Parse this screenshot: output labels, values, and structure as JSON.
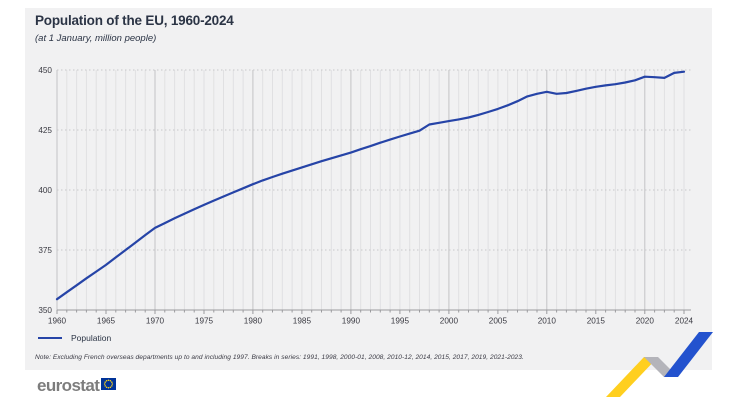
{
  "page": {
    "background": "#ffffff",
    "card_background": "#f1f1f2"
  },
  "header": {
    "title": "Population of the EU, 1960-2024",
    "subtitle": "(at 1 January, million people)"
  },
  "chart_data": {
    "type": "line",
    "title": "Population of the EU, 1960-2024",
    "subtitle": "(at 1 January, million people)",
    "xlabel": "",
    "ylabel": "",
    "ylim": [
      350,
      450
    ],
    "yticks": [
      350,
      375,
      400,
      425,
      450
    ],
    "xticks": [
      1960,
      1965,
      1970,
      1975,
      1980,
      1985,
      1990,
      1995,
      2000,
      2005,
      2010,
      2015,
      2020,
      2024
    ],
    "grid": {
      "vertical": "solid light line every year, darker every decade",
      "horizontal": "dashed at y ticks above baseline"
    },
    "legend_position": "bottom-left",
    "x": [
      1960,
      1961,
      1962,
      1963,
      1964,
      1965,
      1966,
      1967,
      1968,
      1969,
      1970,
      1971,
      1972,
      1973,
      1974,
      1975,
      1976,
      1977,
      1978,
      1979,
      1980,
      1981,
      1982,
      1983,
      1984,
      1985,
      1986,
      1987,
      1988,
      1989,
      1990,
      1991,
      1992,
      1993,
      1994,
      1995,
      1996,
      1997,
      1998,
      1999,
      2000,
      2001,
      2002,
      2003,
      2004,
      2005,
      2006,
      2007,
      2008,
      2009,
      2010,
      2011,
      2012,
      2013,
      2014,
      2015,
      2016,
      2017,
      2018,
      2019,
      2020,
      2021,
      2022,
      2023,
      2024
    ],
    "series": [
      {
        "name": "Population",
        "color": "#2644A7",
        "values": [
          354.5,
          357.4,
          360.3,
          363.2,
          366.0,
          368.8,
          371.9,
          375.0,
          378.1,
          381.2,
          384.2,
          386.2,
          388.2,
          390.1,
          392.0,
          393.8,
          395.6,
          397.3,
          399.0,
          400.7,
          402.4,
          404.0,
          405.4,
          406.8,
          408.1,
          409.4,
          410.7,
          412.0,
          413.2,
          414.4,
          415.6,
          417.0,
          418.3,
          419.7,
          421.0,
          422.3,
          423.5,
          424.7,
          427.3,
          428.0,
          428.7,
          429.4,
          430.2,
          431.3,
          432.5,
          433.8,
          435.3,
          437.0,
          439.0,
          440.1,
          440.9,
          440.1,
          440.4,
          441.3,
          442.2,
          443.0,
          443.6,
          444.1,
          444.8,
          445.7,
          447.2,
          447.0,
          446.7,
          448.8,
          449.3
        ]
      }
    ]
  },
  "legend": {
    "label": "Population"
  },
  "note": "Note: Excluding French overseas departments up to and including 1997. Breaks in series: 1991, 1998, 2000-01, 2008, 2010-12, 2014, 2015, 2017, 2019, 2021-2023.",
  "footer": {
    "brand": "eurostat",
    "eu_flag_colors": {
      "blue": "#003399",
      "yellow": "#FFD617"
    },
    "decoration_colors": {
      "yellow": "#FFCF1F",
      "gray": "#b4b4ba",
      "blue": "#2352CE"
    }
  }
}
